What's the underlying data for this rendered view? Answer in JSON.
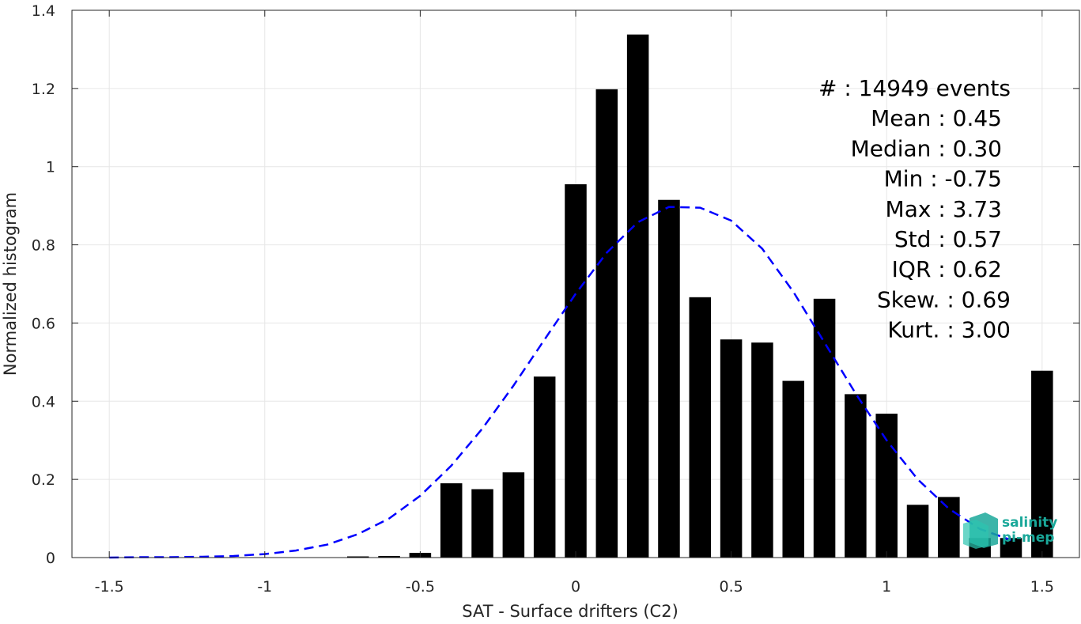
{
  "chart_data": {
    "type": "bar",
    "xlabel": "SAT - Surface drifters (C2)",
    "ylabel": "Normalized histogram",
    "xlim": [
      -1.62,
      1.62
    ],
    "ylim": [
      0,
      1.4
    ],
    "xticks": [
      -1.5,
      -1,
      -0.5,
      0,
      0.5,
      1,
      1.5
    ],
    "xtick_labels": [
      "-1.5",
      "-1",
      "-0.5",
      "0",
      "0.5",
      "1",
      "1.5"
    ],
    "yticks": [
      0,
      0.2,
      0.4,
      0.6,
      0.8,
      1,
      1.2,
      1.4
    ],
    "ytick_labels": [
      "0",
      "0.2",
      "0.4",
      "0.6",
      "0.8",
      "1",
      "1.2",
      "1.4"
    ],
    "grid": true,
    "bar_color": "#000000",
    "bar_width": 0.07,
    "bars": {
      "x": [
        -0.7,
        -0.6,
        -0.5,
        -0.4,
        -0.3,
        -0.2,
        -0.1,
        0.0,
        0.1,
        0.2,
        0.3,
        0.4,
        0.5,
        0.6,
        0.7,
        0.8,
        0.9,
        1.0,
        1.1,
        1.2,
        1.3,
        1.4,
        1.5
      ],
      "values": [
        0.003,
        0.004,
        0.012,
        0.19,
        0.175,
        0.218,
        0.463,
        0.955,
        1.198,
        1.338,
        0.915,
        0.666,
        0.558,
        0.55,
        0.452,
        0.662,
        0.418,
        0.368,
        0.135,
        0.155,
        0.05,
        0.05,
        0.478
      ]
    },
    "fit_curve": {
      "color": "#0000ff",
      "style": "dashed",
      "x": [
        -1.5,
        -1.4,
        -1.3,
        -1.2,
        -1.1,
        -1.0,
        -0.9,
        -0.8,
        -0.7,
        -0.6,
        -0.5,
        -0.4,
        -0.3,
        -0.2,
        -0.1,
        0.0,
        0.1,
        0.2,
        0.3,
        0.4,
        0.5,
        0.6,
        0.7,
        0.8,
        0.9,
        1.0,
        1.1,
        1.2,
        1.3,
        1.4
      ],
      "y": [
        0.0,
        0.001,
        0.001,
        0.002,
        0.004,
        0.009,
        0.018,
        0.033,
        0.06,
        0.1,
        0.158,
        0.235,
        0.33,
        0.44,
        0.558,
        0.675,
        0.78,
        0.858,
        0.897,
        0.895,
        0.862,
        0.79,
        0.68,
        0.55,
        0.42,
        0.3,
        0.2,
        0.125,
        0.073,
        0.045
      ]
    },
    "annotations": [
      "#  : 14949 events",
      "Mean : 0.45",
      "Median : 0.30",
      "Min : -0.75",
      "Max : 3.73",
      "Std : 0.57",
      "IQR : 0.62",
      "Skew. : 0.69",
      "Kurt. : 3.00"
    ],
    "logo_lines": [
      "salinity",
      "pi-mep"
    ]
  }
}
